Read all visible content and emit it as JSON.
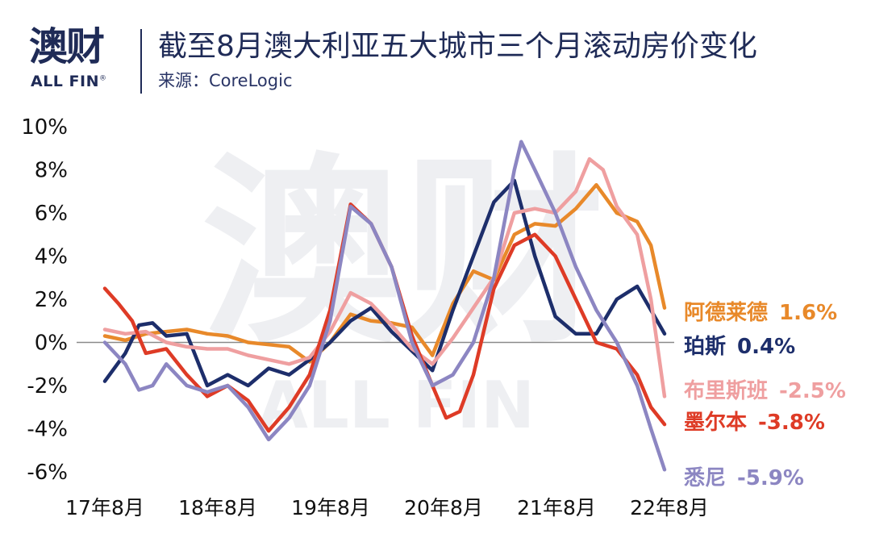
{
  "header": {
    "logo_cn": "澳财",
    "logo_en": "ALL FIN",
    "logo_reg": "®",
    "title": "截至8月澳大利亚五大城市三个月滚动房价变化",
    "subtitle": "来源：CoreLogic"
  },
  "chart_data": {
    "type": "line",
    "title": "截至8月澳大利亚五大城市三个月滚动房价变化",
    "source": "来源：CoreLogic",
    "x_ticks": [
      "17年8月",
      "18年8月",
      "19年8月",
      "20年8月",
      "21年8月",
      "22年8月"
    ],
    "y_ticks": [
      "10%",
      "8%",
      "6%",
      "4%",
      "2%",
      "0%",
      "-2%",
      "-4%",
      "-6%"
    ],
    "ylim": [
      -6,
      10
    ],
    "x_start": "2017-08",
    "x_end": "2022-08",
    "grid": false,
    "zero_line": true,
    "series": [
      {
        "name": "阿德莱德",
        "end_label": "1.6%",
        "color": "#e8892a",
        "points": [
          [
            0,
            0.3
          ],
          [
            3,
            0.1
          ],
          [
            6,
            0.4
          ],
          [
            9,
            0.5
          ],
          [
            12,
            0.6
          ],
          [
            15,
            0.4
          ],
          [
            18,
            0.3
          ],
          [
            21,
            0
          ],
          [
            24,
            -0.1
          ],
          [
            27,
            -0.2
          ],
          [
            30,
            -0.9
          ],
          [
            33,
            0
          ],
          [
            36,
            1.3
          ],
          [
            39,
            1.0
          ],
          [
            42,
            0.9
          ],
          [
            45,
            0.7
          ],
          [
            48,
            -0.6
          ],
          [
            51,
            1.8
          ],
          [
            54,
            3.3
          ],
          [
            57,
            2.9
          ],
          [
            60,
            5.0
          ],
          [
            63,
            5.5
          ],
          [
            66,
            5.4
          ],
          [
            69,
            6.2
          ],
          [
            72,
            7.3
          ],
          [
            75,
            6.0
          ],
          [
            78,
            5.6
          ],
          [
            80,
            4.5
          ],
          [
            82,
            1.6
          ]
        ]
      },
      {
        "name": "珀斯",
        "end_label": "0.4%",
        "color": "#1d2e6b",
        "points": [
          [
            0,
            -1.8
          ],
          [
            3,
            -0.5
          ],
          [
            5,
            0.8
          ],
          [
            7,
            0.9
          ],
          [
            9,
            0.3
          ],
          [
            12,
            0.4
          ],
          [
            15,
            -2.0
          ],
          [
            18,
            -1.5
          ],
          [
            21,
            -2.0
          ],
          [
            24,
            -1.2
          ],
          [
            27,
            -1.5
          ],
          [
            30,
            -0.8
          ],
          [
            33,
            0
          ],
          [
            36,
            1.0
          ],
          [
            39,
            1.6
          ],
          [
            42,
            0.5
          ],
          [
            45,
            -0.4
          ],
          [
            48,
            -1.3
          ],
          [
            51,
            1.5
          ],
          [
            54,
            4.0
          ],
          [
            57,
            6.5
          ],
          [
            60,
            7.5
          ],
          [
            63,
            4.0
          ],
          [
            66,
            1.2
          ],
          [
            69,
            0.4
          ],
          [
            72,
            0.4
          ],
          [
            75,
            2.0
          ],
          [
            78,
            2.6
          ],
          [
            80,
            1.5
          ],
          [
            82,
            0.4
          ]
        ]
      },
      {
        "name": "布里斯班",
        "end_label": "-2.5%",
        "color": "#ef9fa0",
        "points": [
          [
            0,
            0.6
          ],
          [
            3,
            0.4
          ],
          [
            6,
            0.5
          ],
          [
            9,
            0
          ],
          [
            12,
            -0.2
          ],
          [
            15,
            -0.3
          ],
          [
            18,
            -0.3
          ],
          [
            21,
            -0.6
          ],
          [
            24,
            -0.8
          ],
          [
            27,
            -1.0
          ],
          [
            30,
            -0.7
          ],
          [
            33,
            0.5
          ],
          [
            36,
            2.3
          ],
          [
            39,
            1.8
          ],
          [
            42,
            0.8
          ],
          [
            45,
            -0.3
          ],
          [
            48,
            -1.0
          ],
          [
            51,
            0.2
          ],
          [
            54,
            1.6
          ],
          [
            57,
            3.0
          ],
          [
            60,
            6.0
          ],
          [
            63,
            6.2
          ],
          [
            66,
            6.0
          ],
          [
            69,
            7.0
          ],
          [
            71,
            8.5
          ],
          [
            73,
            8.0
          ],
          [
            75,
            6.3
          ],
          [
            78,
            5.0
          ],
          [
            80,
            2.0
          ],
          [
            82,
            -2.5
          ]
        ]
      },
      {
        "name": "墨尔本",
        "end_label": "-3.8%",
        "color": "#de3b26",
        "points": [
          [
            0,
            2.5
          ],
          [
            2,
            1.8
          ],
          [
            4,
            1.0
          ],
          [
            6,
            -0.5
          ],
          [
            9,
            -0.3
          ],
          [
            12,
            -1.5
          ],
          [
            15,
            -2.5
          ],
          [
            18,
            -2.0
          ],
          [
            21,
            -2.7
          ],
          [
            24,
            -4.1
          ],
          [
            27,
            -3.0
          ],
          [
            30,
            -1.5
          ],
          [
            33,
            1.5
          ],
          [
            36,
            6.4
          ],
          [
            39,
            5.5
          ],
          [
            42,
            3.5
          ],
          [
            45,
            0.3
          ],
          [
            48,
            -2.0
          ],
          [
            50,
            -3.5
          ],
          [
            52,
            -3.2
          ],
          [
            54,
            -1.5
          ],
          [
            57,
            2.5
          ],
          [
            60,
            4.5
          ],
          [
            63,
            5.0
          ],
          [
            66,
            4.0
          ],
          [
            69,
            2.0
          ],
          [
            72,
            0
          ],
          [
            75,
            -0.3
          ],
          [
            78,
            -1.5
          ],
          [
            80,
            -3.0
          ],
          [
            82,
            -3.8
          ]
        ]
      },
      {
        "name": "悉尼",
        "end_label": "-5.9%",
        "color": "#8c86c2",
        "points": [
          [
            0,
            0
          ],
          [
            3,
            -1.0
          ],
          [
            5,
            -2.2
          ],
          [
            7,
            -2.0
          ],
          [
            9,
            -1.0
          ],
          [
            12,
            -2.0
          ],
          [
            15,
            -2.3
          ],
          [
            18,
            -2.0
          ],
          [
            21,
            -3.0
          ],
          [
            24,
            -4.5
          ],
          [
            27,
            -3.5
          ],
          [
            30,
            -2.0
          ],
          [
            33,
            1.0
          ],
          [
            36,
            6.3
          ],
          [
            39,
            5.5
          ],
          [
            42,
            3.5
          ],
          [
            45,
            0
          ],
          [
            48,
            -2.0
          ],
          [
            51,
            -1.5
          ],
          [
            54,
            0
          ],
          [
            57,
            3.0
          ],
          [
            60,
            8.0
          ],
          [
            61,
            9.3
          ],
          [
            63,
            8.0
          ],
          [
            66,
            6.0
          ],
          [
            69,
            3.5
          ],
          [
            72,
            1.5
          ],
          [
            75,
            0
          ],
          [
            78,
            -2.0
          ],
          [
            80,
            -4.0
          ],
          [
            82,
            -5.9
          ]
        ]
      }
    ],
    "label_order": [
      "阿德莱德",
      "珀斯",
      "布里斯班",
      "墨尔本",
      "悉尼"
    ]
  }
}
